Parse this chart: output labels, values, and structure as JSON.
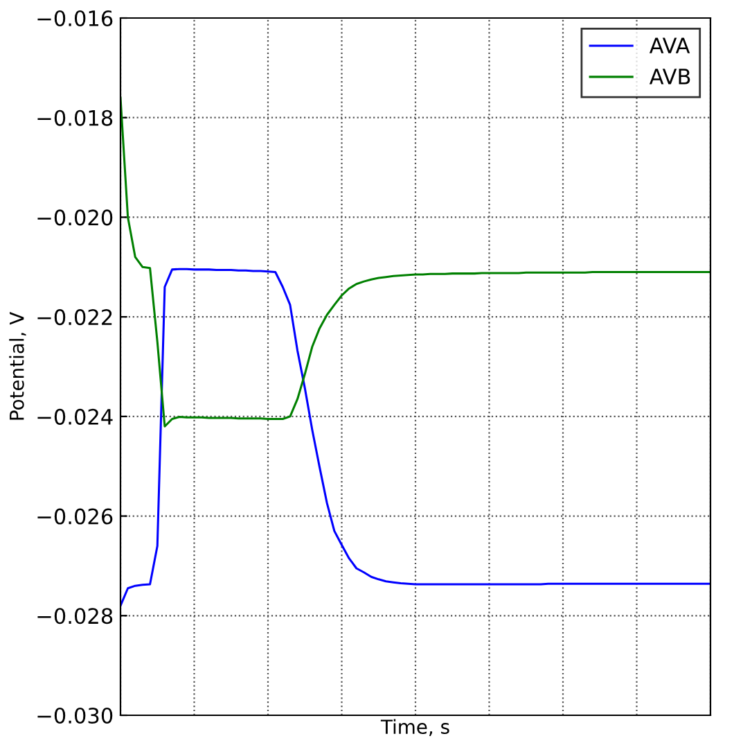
{
  "chart_data": {
    "type": "line",
    "xlabel": "Time, s",
    "ylabel": "Potential, V",
    "categories": [
      null,
      null,
      null,
      null,
      null,
      null,
      null,
      null,
      null,
      null,
      null,
      null,
      null,
      null,
      null,
      null,
      null,
      null,
      null,
      null,
      null,
      null,
      null,
      null,
      null,
      null,
      null,
      null,
      null,
      null,
      null,
      null,
      null,
      null,
      null,
      null,
      null,
      null,
      null,
      null,
      null,
      null,
      null,
      null,
      null,
      null,
      null,
      null,
      null,
      null,
      null,
      null,
      null,
      null,
      null,
      null,
      null,
      null,
      null,
      null,
      null,
      null,
      null,
      null,
      null,
      null,
      null,
      null,
      null,
      null,
      null,
      null,
      null,
      null,
      null,
      null,
      null,
      null,
      null,
      null,
      null
    ],
    "series": [
      {
        "name": "AVA",
        "color": "#0000ff",
        "values": [
          -0.0278,
          -0.02745,
          -0.0274,
          -0.02738,
          -0.02737,
          -0.0266,
          -0.0214,
          -0.02105,
          -0.02104,
          -0.02104,
          -0.02105,
          -0.02105,
          -0.02105,
          -0.02106,
          -0.02106,
          -0.02106,
          -0.02107,
          -0.02107,
          -0.02108,
          -0.02108,
          -0.02109,
          -0.0211,
          -0.0214,
          -0.02176,
          -0.02268,
          -0.02343,
          -0.02427,
          -0.02502,
          -0.02574,
          -0.0263,
          -0.02658,
          -0.02685,
          -0.02705,
          -0.02713,
          -0.02722,
          -0.02727,
          -0.02731,
          -0.02733,
          -0.02735,
          -0.02736,
          -0.02737,
          -0.02737,
          -0.02737,
          -0.02737,
          -0.02737,
          -0.02737,
          -0.02737,
          -0.02737,
          -0.02737,
          -0.02737,
          -0.02737,
          -0.02737,
          -0.02737,
          -0.02737,
          -0.02737,
          -0.02737,
          -0.02737,
          -0.02737,
          -0.02736,
          -0.02736,
          -0.02736,
          -0.02736,
          -0.02736,
          -0.02736,
          -0.02736,
          -0.02736,
          -0.02736,
          -0.02736,
          -0.02736,
          -0.02736,
          -0.02736,
          -0.02736,
          -0.02736,
          -0.02736,
          -0.02736,
          -0.02736,
          -0.02736,
          -0.02736,
          -0.02736,
          -0.02736,
          -0.02736
        ]
      },
      {
        "name": "AVB",
        "color": "#008000",
        "values": [
          -0.0176,
          -0.02,
          -0.0208,
          -0.021,
          -0.02102,
          -0.0225,
          -0.0242,
          -0.02405,
          -0.02401,
          -0.02402,
          -0.02402,
          -0.02402,
          -0.02403,
          -0.02403,
          -0.02403,
          -0.02403,
          -0.02404,
          -0.02404,
          -0.02404,
          -0.02404,
          -0.02405,
          -0.02405,
          -0.02405,
          -0.024,
          -0.02365,
          -0.02315,
          -0.0226,
          -0.02223,
          -0.02196,
          -0.02176,
          -0.02157,
          -0.02143,
          -0.02134,
          -0.02129,
          -0.02125,
          -0.02122,
          -0.0212,
          -0.02118,
          -0.02117,
          -0.02116,
          -0.02115,
          -0.02115,
          -0.02114,
          -0.02114,
          -0.02114,
          -0.02113,
          -0.02113,
          -0.02113,
          -0.02113,
          -0.02112,
          -0.02112,
          -0.02112,
          -0.02112,
          -0.02112,
          -0.02112,
          -0.02111,
          -0.02111,
          -0.02111,
          -0.02111,
          -0.02111,
          -0.02111,
          -0.02111,
          -0.02111,
          -0.02111,
          -0.0211,
          -0.0211,
          -0.0211,
          -0.0211,
          -0.0211,
          -0.0211,
          -0.0211,
          -0.0211,
          -0.0211,
          -0.0211,
          -0.0211,
          -0.0211,
          -0.0211,
          -0.0211,
          -0.0211,
          -0.0211,
          -0.0211
        ]
      }
    ],
    "ylim": [
      -0.03,
      -0.016
    ],
    "yticks": [
      {
        "value": -0.03,
        "label": "−0.030"
      },
      {
        "value": -0.028,
        "label": "−0.028"
      },
      {
        "value": -0.026,
        "label": "−0.026"
      },
      {
        "value": -0.024,
        "label": "−0.024"
      },
      {
        "value": -0.022,
        "label": "−0.022"
      },
      {
        "value": -0.02,
        "label": "−0.020"
      },
      {
        "value": -0.018,
        "label": "−0.018"
      },
      {
        "value": -0.016,
        "label": "−0.016"
      }
    ],
    "grid": true,
    "legend": "top right",
    "tick_labels": "y",
    "line_style": "solid",
    "marker": "none"
  }
}
